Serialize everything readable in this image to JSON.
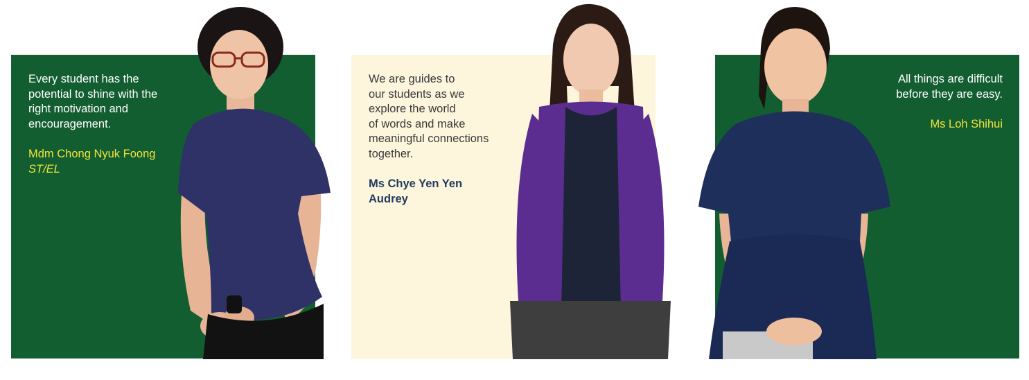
{
  "colors": {
    "green_panel": "#125e31",
    "cream_panel": "#fdf5dc",
    "highlight_yellow": "#f4e33b",
    "navy_name": "#1f3b5e"
  },
  "profiles": [
    {
      "quote": "Every student has the\npotential to shine with the\nright motivation and\nencouragement.",
      "name": "Mdm Chong Nyuk Foong",
      "role": "ST/EL"
    },
    {
      "quote": "We are guides to\nour students as we\nexplore the world\nof words and make\nmeaningful connections\ntogether.",
      "name": "Ms Chye Yen Yen\nAudrey"
    },
    {
      "quote": "All things are difficult\nbefore they are easy.",
      "name": "Ms Loh Shihui"
    }
  ]
}
